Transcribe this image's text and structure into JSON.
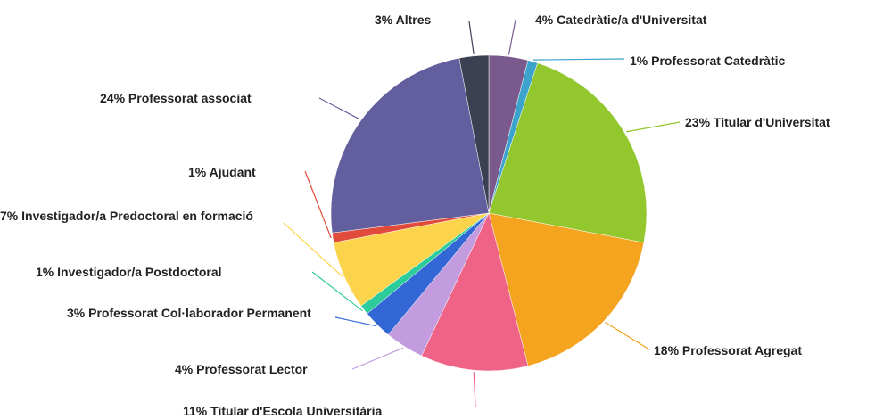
{
  "chart_data": {
    "type": "pie",
    "categories": [
      "Catedràtic/a d'Universitat",
      "Professorat Catedràtic",
      "Titular d'Universitat",
      "Professorat Agregat",
      "Titular d'Escola Universitària",
      "Professorat Lector",
      "Professorat Col·laborador Permanent",
      "Investigador/a Postdoctoral",
      "Investigador/a Predoctoral en formació",
      "Ajudant",
      "Professorat associat",
      "Altres"
    ],
    "values": [
      4,
      1,
      23,
      18,
      11,
      4,
      3,
      1,
      7,
      1,
      24,
      3
    ],
    "value_labels": [
      "4%",
      "1%",
      "23%",
      "18%",
      "11%",
      "4%",
      "3%",
      "1%",
      "7%",
      "1%",
      "24%",
      "3%"
    ],
    "colors": [
      "#7a5a8c",
      "#3ba3cc",
      "#92c82e",
      "#f4a41e",
      "#ef6386",
      "#c39ce0",
      "#3467d6",
      "#2ecc9c",
      "#fcd44c",
      "#e14b3b",
      "#635f9f",
      "#3b4152"
    ]
  }
}
